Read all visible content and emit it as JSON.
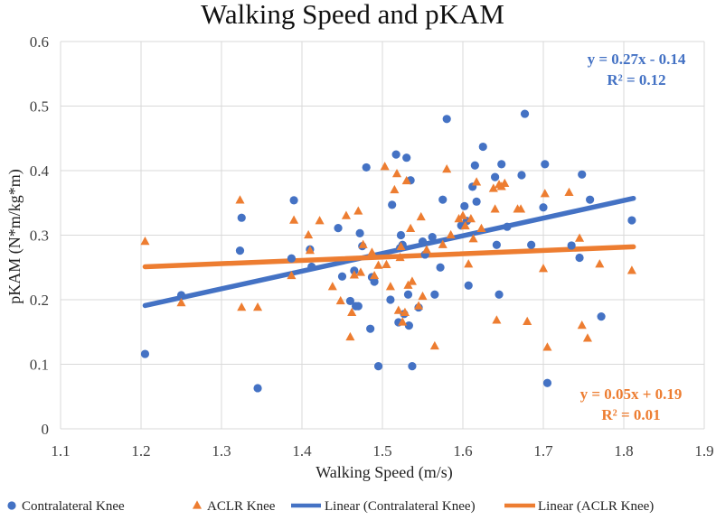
{
  "chart_data": {
    "type": "scatter",
    "title": "Walking Speed and pKAM",
    "xlabel": "Walking Speed (m/s)",
    "ylabel": "pKAM (N*m/kg*m)",
    "xlim": [
      1.1,
      1.9
    ],
    "ylim": [
      0,
      0.6
    ],
    "xticks": [
      "1.1",
      "1.2",
      "1.3",
      "1.4",
      "1.5",
      "1.6",
      "1.7",
      "1.8",
      "1.9"
    ],
    "yticks": [
      "0",
      "0.1",
      "0.2",
      "0.3",
      "0.4",
      "0.5",
      "0.6"
    ],
    "grid": true,
    "legend_position": "bottom",
    "colors": {
      "contralateral": "#4472C4",
      "aclr": "#ED7D31"
    },
    "series": [
      {
        "name": "Contralateral Knee",
        "marker": "circle",
        "points": [
          [
            1.205,
            0.116
          ],
          [
            1.25,
            0.207
          ],
          [
            1.323,
            0.276
          ],
          [
            1.325,
            0.327
          ],
          [
            1.345,
            0.063
          ],
          [
            1.387,
            0.264
          ],
          [
            1.39,
            0.354
          ],
          [
            1.41,
            0.278
          ],
          [
            1.412,
            0.251
          ],
          [
            1.445,
            0.311
          ],
          [
            1.45,
            0.236
          ],
          [
            1.46,
            0.198
          ],
          [
            1.465,
            0.245
          ],
          [
            1.467,
            0.19
          ],
          [
            1.47,
            0.19
          ],
          [
            1.472,
            0.303
          ],
          [
            1.475,
            0.283
          ],
          [
            1.48,
            0.405
          ],
          [
            1.485,
            0.155
          ],
          [
            1.487,
            0.235
          ],
          [
            1.49,
            0.228
          ],
          [
            1.495,
            0.097
          ],
          [
            1.51,
            0.2
          ],
          [
            1.512,
            0.347
          ],
          [
            1.517,
            0.425
          ],
          [
            1.52,
            0.165
          ],
          [
            1.522,
            0.28
          ],
          [
            1.523,
            0.3
          ],
          [
            1.525,
            0.285
          ],
          [
            1.527,
            0.178
          ],
          [
            1.53,
            0.42
          ],
          [
            1.532,
            0.208
          ],
          [
            1.533,
            0.16
          ],
          [
            1.535,
            0.385
          ],
          [
            1.537,
            0.097
          ],
          [
            1.545,
            0.188
          ],
          [
            1.55,
            0.29
          ],
          [
            1.553,
            0.27
          ],
          [
            1.562,
            0.297
          ],
          [
            1.565,
            0.208
          ],
          [
            1.572,
            0.25
          ],
          [
            1.575,
            0.355
          ],
          [
            1.58,
            0.48
          ],
          [
            1.598,
            0.315
          ],
          [
            1.602,
            0.345
          ],
          [
            1.605,
            0.322
          ],
          [
            1.607,
            0.222
          ],
          [
            1.612,
            0.375
          ],
          [
            1.615,
            0.408
          ],
          [
            1.617,
            0.352
          ],
          [
            1.625,
            0.437
          ],
          [
            1.64,
            0.39
          ],
          [
            1.642,
            0.285
          ],
          [
            1.645,
            0.208
          ],
          [
            1.648,
            0.41
          ],
          [
            1.655,
            0.313
          ],
          [
            1.673,
            0.393
          ],
          [
            1.677,
            0.488
          ],
          [
            1.685,
            0.285
          ],
          [
            1.7,
            0.343
          ],
          [
            1.702,
            0.41
          ],
          [
            1.705,
            0.071
          ],
          [
            1.735,
            0.284
          ],
          [
            1.745,
            0.265
          ],
          [
            1.748,
            0.394
          ],
          [
            1.758,
            0.355
          ],
          [
            1.772,
            0.174
          ],
          [
            1.81,
            0.323
          ]
        ]
      },
      {
        "name": "ACLR Knee",
        "marker": "triangle",
        "points": [
          [
            1.205,
            0.29
          ],
          [
            1.25,
            0.195
          ],
          [
            1.323,
            0.354
          ],
          [
            1.325,
            0.188
          ],
          [
            1.345,
            0.188
          ],
          [
            1.387,
            0.237
          ],
          [
            1.39,
            0.323
          ],
          [
            1.408,
            0.3
          ],
          [
            1.41,
            0.276
          ],
          [
            1.422,
            0.322
          ],
          [
            1.438,
            0.22
          ],
          [
            1.448,
            0.198
          ],
          [
            1.455,
            0.33
          ],
          [
            1.46,
            0.142
          ],
          [
            1.462,
            0.18
          ],
          [
            1.465,
            0.238
          ],
          [
            1.47,
            0.337
          ],
          [
            1.473,
            0.242
          ],
          [
            1.476,
            0.285
          ],
          [
            1.487,
            0.273
          ],
          [
            1.49,
            0.237
          ],
          [
            1.495,
            0.253
          ],
          [
            1.503,
            0.406
          ],
          [
            1.505,
            0.254
          ],
          [
            1.51,
            0.22
          ],
          [
            1.515,
            0.37
          ],
          [
            1.518,
            0.395
          ],
          [
            1.52,
            0.183
          ],
          [
            1.522,
            0.265
          ],
          [
            1.523,
            0.282
          ],
          [
            1.525,
            0.165
          ],
          [
            1.528,
            0.18
          ],
          [
            1.53,
            0.384
          ],
          [
            1.532,
            0.222
          ],
          [
            1.535,
            0.31
          ],
          [
            1.537,
            0.228
          ],
          [
            1.545,
            0.19
          ],
          [
            1.548,
            0.328
          ],
          [
            1.55,
            0.205
          ],
          [
            1.555,
            0.277
          ],
          [
            1.565,
            0.128
          ],
          [
            1.575,
            0.285
          ],
          [
            1.58,
            0.402
          ],
          [
            1.585,
            0.3
          ],
          [
            1.595,
            0.325
          ],
          [
            1.6,
            0.33
          ],
          [
            1.603,
            0.314
          ],
          [
            1.607,
            0.255
          ],
          [
            1.61,
            0.325
          ],
          [
            1.613,
            0.294
          ],
          [
            1.617,
            0.382
          ],
          [
            1.623,
            0.31
          ],
          [
            1.638,
            0.372
          ],
          [
            1.64,
            0.34
          ],
          [
            1.642,
            0.168
          ],
          [
            1.645,
            0.378
          ],
          [
            1.648,
            0.375
          ],
          [
            1.652,
            0.38
          ],
          [
            1.668,
            0.34
          ],
          [
            1.672,
            0.34
          ],
          [
            1.68,
            0.166
          ],
          [
            1.7,
            0.248
          ],
          [
            1.702,
            0.364
          ],
          [
            1.705,
            0.126
          ],
          [
            1.732,
            0.366
          ],
          [
            1.745,
            0.295
          ],
          [
            1.748,
            0.16
          ],
          [
            1.755,
            0.14
          ],
          [
            1.77,
            0.255
          ],
          [
            1.81,
            0.245
          ]
        ]
      }
    ],
    "trendlines": [
      {
        "name": "Linear (Contralateral Knee)",
        "series": "Contralateral Knee",
        "slope": 0.27,
        "intercept": -0.14,
        "x_range": [
          1.205,
          1.812
        ],
        "y_at_ends": [
          0.191,
          0.357
        ],
        "equation": "y = 0.27x - 0.14",
        "r2": "R² = 0.12"
      },
      {
        "name": "Linear (ACLR Knee)",
        "series": "ACLR Knee",
        "slope": 0.05,
        "intercept": 0.19,
        "x_range": [
          1.205,
          1.812
        ],
        "y_at_ends": [
          0.251,
          0.282
        ],
        "equation": "y = 0.05x + 0.19",
        "r2": "R² = 0.01"
      }
    ]
  }
}
